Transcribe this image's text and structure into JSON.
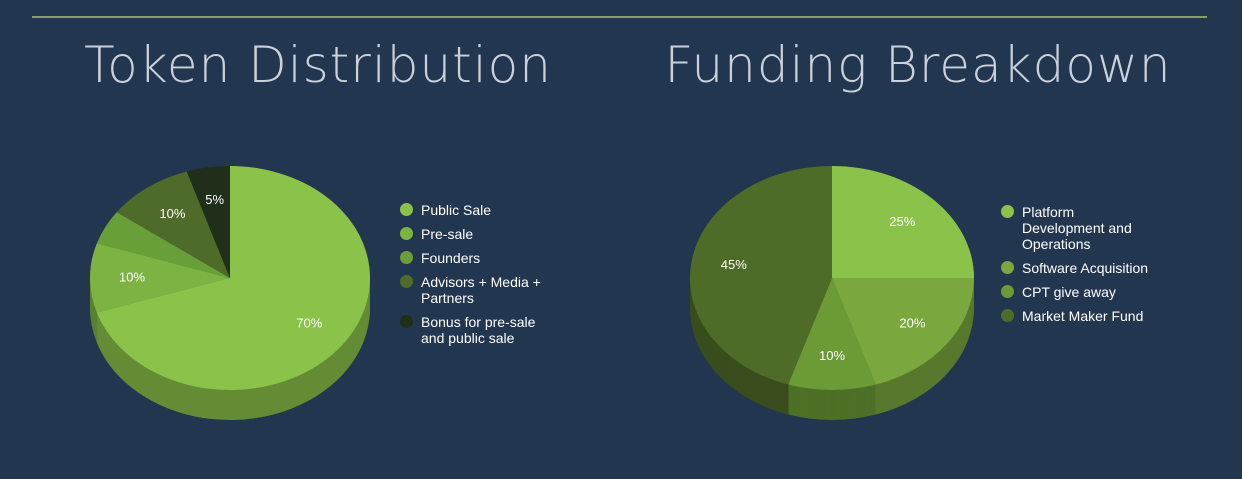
{
  "chart_data": [
    {
      "type": "pie",
      "title": "Token Distribution",
      "categories": [
        "Public Sale",
        "Pre-sale",
        "Founders",
        "Advisors + Media + Partners",
        "Bonus for pre-sale and public sale"
      ],
      "values": [
        70,
        10,
        5,
        10,
        5
      ],
      "value_labels": [
        "70%",
        "10%",
        null,
        "10%",
        "5%"
      ],
      "colors": [
        "#8bc34a",
        "#7cb342",
        "#689f38",
        "#4e6b2a",
        "#1f2f1a"
      ]
    },
    {
      "type": "pie",
      "title": "Funding Breakdown",
      "categories": [
        "Platform Development and Operations",
        "Software Acquisition",
        "CPT give away",
        "Market Maker Fund"
      ],
      "values": [
        25,
        20,
        10,
        45
      ],
      "value_labels": [
        "25%",
        "20%",
        "10%",
        "45%"
      ],
      "colors": [
        "#8bc34a",
        "#7aa83e",
        "#6b9a36",
        "#4f6b28"
      ]
    }
  ]
}
